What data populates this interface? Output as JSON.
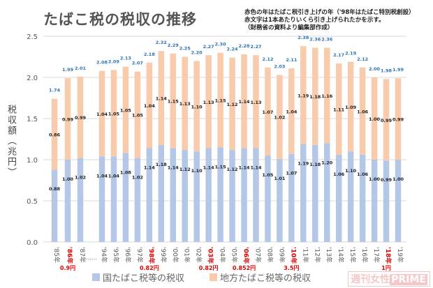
{
  "chart_data": {
    "type": "bar",
    "stacked": true,
    "title": "たばこ税の税収の推移",
    "notes": [
      "赤色の年はたばこ税引き上げの年（'98年はたばこ特別税創設）",
      "赤文字は1本あたりいくら引き上げられたかを示す。",
      "（財務省の資料より編集部作成）"
    ],
    "ylabel": "税収額（兆円）",
    "ylim": [
      0,
      2.5
    ],
    "yticks": [
      "0.0",
      "0.5",
      "1.0",
      "1.5",
      "2.0",
      "2.5"
    ],
    "grid": true,
    "legend_position": "bottom",
    "gap_marker": "……",
    "categories": [
      "'85年",
      "'86年",
      "'87年",
      "'94年",
      "'95年",
      "'96年",
      "'97年",
      "'98年",
      "'99年",
      "'00年",
      "'01年",
      "'02年",
      "'03年",
      "'04年",
      "'05年",
      "'06年",
      "'07年",
      "'08年",
      "'09年",
      "'10年",
      "'11年",
      "'12年",
      "'13年",
      "'14年",
      "'15年",
      "'16年",
      "'17年",
      "'18年",
      "'19年"
    ],
    "highlight": {
      "'86年": "0.9円",
      "'98年": "0.82円",
      "'03年": "0.82円",
      "'06年": "0.852円",
      "'10年": "3.5円",
      "'18年": "1円"
    },
    "series": [
      {
        "name": "国たばこ税等の税収",
        "color": "#b4c7e7",
        "values": [
          0.88,
          1.0,
          1.02,
          1.04,
          1.04,
          1.08,
          1.02,
          1.14,
          1.18,
          1.14,
          1.12,
          1.1,
          1.14,
          1.15,
          1.12,
          1.14,
          1.14,
          1.05,
          1.01,
          1.07,
          1.19,
          1.18,
          1.2,
          1.06,
          1.1,
          1.06,
          1.0,
          0.99,
          1.0
        ]
      },
      {
        "name": "地方たばこ税等の税収",
        "color": "#f8cbad",
        "values": [
          0.86,
          0.99,
          0.99,
          1.04,
          1.05,
          1.05,
          1.05,
          1.04,
          1.14,
          1.15,
          1.13,
          1.1,
          1.13,
          1.15,
          1.12,
          1.14,
          1.13,
          1.07,
          1.02,
          1.04,
          1.19,
          1.18,
          1.16,
          1.11,
          1.09,
          1.06,
          1.0,
          0.99,
          0.99
        ]
      }
    ],
    "totals": [
      1.74,
      1.99,
      2.01,
      2.08,
      2.09,
      2.13,
      2.07,
      2.18,
      2.32,
      2.29,
      2.25,
      2.2,
      2.27,
      2.3,
      2.24,
      2.28,
      2.27,
      2.12,
      2.03,
      2.11,
      2.38,
      2.36,
      2.36,
      2.17,
      2.19,
      2.12,
      2.0,
      1.98,
      1.99
    ],
    "colors": {
      "total_label": "#2e75b6",
      "highlight": "#e00000"
    }
  },
  "watermark": {
    "a": "週刊女性",
    "b": "PRIME"
  }
}
